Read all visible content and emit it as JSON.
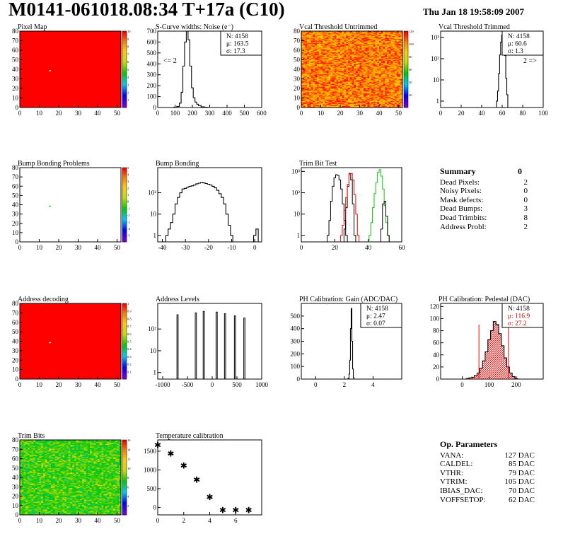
{
  "header": {
    "title": "M0141-061018.08:34 T+17a (C10)",
    "date": "Thu Jan 18 19:58:09 2007"
  },
  "colors": {
    "red": "#ff0000",
    "green": "#00cc00",
    "black": "#000000",
    "pedestal_stats": "#cc0000"
  },
  "summary": {
    "title": "Summary",
    "total": "0",
    "rows": [
      {
        "label": "Dead Pixels:",
        "value": "2"
      },
      {
        "label": "Noisy Pixels:",
        "value": "0"
      },
      {
        "label": "Mask defects:",
        "value": "0"
      },
      {
        "label": "Dead Bumps:",
        "value": "3"
      },
      {
        "label": "Dead Trimbits:",
        "value": "8"
      },
      {
        "label": "Address Probl:",
        "value": "2"
      }
    ]
  },
  "op_params": {
    "title": "Op. Parameters",
    "rows": [
      {
        "label": "VANA:",
        "value": "127 DAC"
      },
      {
        "label": "CALDEL:",
        "value": "85 DAC"
      },
      {
        "label": "VTHR:",
        "value": "79 DAC"
      },
      {
        "label": "VTRIM:",
        "value": "105 DAC"
      },
      {
        "label": "IBIAS_DAC:",
        "value": "70 DAC"
      },
      {
        "label": "VOFFSETOP:",
        "value": "62 DAC"
      }
    ]
  },
  "chart_data": [
    {
      "id": "pixel_map",
      "type": "heatmap",
      "title": "Pixel Map",
      "xlim": [
        0,
        52
      ],
      "ylim": [
        0,
        80
      ],
      "xticks": [
        0,
        10,
        20,
        30,
        40,
        50
      ],
      "yticks": [
        0,
        10,
        20,
        30,
        40,
        50,
        60,
        70,
        80
      ],
      "fill": "uniform",
      "level": 10,
      "zlim": [
        0,
        10
      ],
      "colorbar_ticks": [
        "1",
        "2",
        "3",
        "4",
        "5",
        "6",
        "7",
        "8",
        "9",
        "10"
      ],
      "defects": [
        {
          "x": 15,
          "y": 38
        }
      ]
    },
    {
      "id": "scurve",
      "type": "histogram",
      "title": "S-Curve widths: Noise (e⁻)",
      "xlim": [
        0,
        600
      ],
      "ylim": [
        0,
        700
      ],
      "xticks": [
        0,
        100,
        200,
        300,
        400,
        500,
        600
      ],
      "yticks": [
        0,
        100,
        200,
        300,
        400,
        500,
        600,
        700
      ],
      "stats": [
        "N: 4158",
        "μ: 163.5",
        "σ: 17.3"
      ],
      "annotation": "<= 2",
      "x": [
        80,
        100,
        120,
        130,
        140,
        150,
        160,
        170,
        180,
        190,
        200,
        210,
        220,
        230,
        240,
        260,
        280,
        300
      ],
      "values": [
        0,
        2,
        10,
        40,
        140,
        380,
        600,
        700,
        620,
        380,
        180,
        90,
        50,
        30,
        18,
        6,
        2,
        0
      ]
    },
    {
      "id": "vcal_untrimmed",
      "type": "heatmap",
      "title": "Vcal Threshold Untrimmed",
      "xlim": [
        0,
        52
      ],
      "ylim": [
        0,
        80
      ],
      "xticks": [
        0,
        10,
        20,
        30,
        40,
        50
      ],
      "yticks": [
        0,
        10,
        20,
        30,
        40,
        50,
        60,
        70,
        80
      ],
      "fill": "noise-orange",
      "zlim": [
        0,
        120
      ],
      "colorbar_ticks": [
        "20",
        "40",
        "60",
        "80",
        "100",
        "120"
      ]
    },
    {
      "id": "vcal_trimmed",
      "type": "histogram",
      "title": "Vcal Threshold Trimmed",
      "xlim": [
        0,
        100
      ],
      "ylim": [
        0.5,
        2000
      ],
      "log": true,
      "xticks": [
        0,
        20,
        40,
        60,
        80,
        100
      ],
      "yticks_log": [
        "1",
        "10",
        "10²",
        "10³"
      ],
      "stats": [
        "N: 4158",
        "μ: 60.6",
        "σ: 1.3"
      ],
      "annotation": "2 =>",
      "x": [
        55,
        56,
        57,
        58,
        59,
        60,
        61,
        62,
        63,
        64,
        65,
        66
      ],
      "values": [
        1,
        3,
        20,
        150,
        600,
        1300,
        1400,
        700,
        140,
        12,
        2,
        0
      ]
    },
    {
      "id": "bump_problems",
      "type": "heatmap",
      "title": "Bump Bonding Problems",
      "xlim": [
        0,
        52
      ],
      "ylim": [
        0,
        80
      ],
      "xticks": [
        0,
        10,
        20,
        30,
        40,
        50
      ],
      "yticks": [
        0,
        10,
        20,
        30,
        40,
        50,
        60,
        70,
        80
      ],
      "fill": "empty",
      "zlim": [
        -5,
        5
      ],
      "colorbar_ticks": [
        "-5",
        "-4",
        "-3",
        "-2",
        "-1",
        "0",
        "1",
        "2",
        "3",
        "4",
        "5"
      ],
      "defects": [
        {
          "x": 15,
          "y": 38
        }
      ]
    },
    {
      "id": "bump_bonding",
      "type": "histogram",
      "title": "Bump Bonding",
      "xlim": [
        -42,
        3
      ],
      "ylim": [
        0.5,
        1500
      ],
      "log": true,
      "xticks": [
        -40,
        -30,
        -20,
        -10,
        0
      ],
      "yticks_log": [
        "1",
        "10",
        "10²"
      ],
      "x": [
        -38,
        -37,
        -36,
        -35,
        -34,
        -33,
        -32,
        -31,
        -30,
        -29,
        -28,
        -27,
        -26,
        -25,
        -24,
        -23,
        -22,
        -21,
        -20,
        -19,
        -18,
        -17,
        -16,
        -15,
        -14,
        -13,
        -12,
        -11,
        -10,
        -9,
        -8,
        -7,
        -6,
        -5,
        -4,
        -3,
        -2,
        -1,
        0,
        1
      ],
      "values": [
        1,
        2,
        4,
        10,
        30,
        60,
        100,
        150,
        160,
        180,
        200,
        210,
        230,
        260,
        280,
        300,
        290,
        270,
        250,
        230,
        200,
        170,
        130,
        90,
        60,
        30,
        10,
        3,
        1,
        0,
        0,
        0,
        0,
        0,
        0,
        0,
        0,
        0,
        1,
        2
      ]
    },
    {
      "id": "trim_bit",
      "type": "histogram",
      "title": "Trim Bit Test",
      "xlim": [
        0,
        60
      ],
      "ylim": [
        0.5,
        1500
      ],
      "log": true,
      "xticks": [
        0,
        20,
        40,
        60
      ],
      "yticks_log": [
        "1",
        "10",
        "10²",
        "10³"
      ],
      "series": [
        {
          "color": "#000000",
          "x": [
            16,
            17,
            18,
            19,
            20,
            21,
            22,
            23,
            24,
            25,
            26,
            27
          ],
          "values": [
            1,
            5,
            40,
            200,
            500,
            700,
            650,
            400,
            150,
            30,
            5,
            1
          ]
        },
        {
          "color": "#000000",
          "x": [
            26,
            27,
            28,
            29,
            30,
            31,
            32
          ],
          "values": [
            2,
            20,
            200,
            800,
            400,
            30,
            1
          ]
        },
        {
          "color": "#ff0000",
          "x": [
            24,
            25,
            26,
            27,
            28,
            29,
            30,
            31,
            32,
            33,
            34
          ],
          "values": [
            1,
            3,
            15,
            60,
            250,
            700,
            800,
            400,
            80,
            10,
            1
          ]
        },
        {
          "color": "#00cc00",
          "x": [
            41,
            42,
            43,
            44,
            45,
            46,
            47,
            48,
            49,
            50,
            51,
            52
          ],
          "values": [
            1,
            4,
            20,
            90,
            300,
            900,
            1200,
            600,
            150,
            25,
            4,
            1
          ]
        },
        {
          "color": "#000000",
          "x": [
            48,
            49,
            50,
            51,
            52
          ],
          "values": [
            2,
            30,
            40,
            8,
            1
          ]
        }
      ]
    },
    {
      "id": "address_decoding",
      "type": "heatmap",
      "title": "Address decoding",
      "xlim": [
        0,
        52
      ],
      "ylim": [
        0,
        80
      ],
      "xticks": [
        0,
        10,
        20,
        30,
        40,
        50
      ],
      "yticks": [
        0,
        10,
        20,
        30,
        40,
        50,
        60,
        70,
        80
      ],
      "fill": "uniform",
      "level": 1,
      "zlim": [
        0,
        1
      ],
      "colorbar_ticks": [
        "0.1",
        "0.2",
        "0.3",
        "0.4",
        "0.5",
        "0.6",
        "0.7",
        "0.8",
        "0.9",
        "1"
      ],
      "defects": [
        {
          "x": 15,
          "y": 38
        }
      ]
    },
    {
      "id": "address_levels",
      "type": "histogram",
      "title": "Address Levels",
      "xlim": [
        -1100,
        1000
      ],
      "ylim": [
        0.5,
        1500
      ],
      "log": true,
      "xticks": [
        -1000,
        -500,
        0,
        500,
        1000
      ],
      "yticks_log": [
        "1",
        "10",
        "10²"
      ],
      "peaks": [
        {
          "x": -700,
          "height": 450
        },
        {
          "x": -330,
          "height": 550
        },
        {
          "x": -170,
          "height": 650
        },
        {
          "x": 90,
          "height": 600
        },
        {
          "x": 260,
          "height": 500
        },
        {
          "x": 460,
          "height": 400
        },
        {
          "x": 650,
          "height": 320
        }
      ]
    },
    {
      "id": "ph_gain",
      "type": "histogram",
      "title": "PH Calibration: Gain (ADC/DAC)",
      "xlim": [
        -1,
        6
      ],
      "ylim": [
        0,
        600
      ],
      "xticks": [
        0,
        2,
        4
      ],
      "yticks": [
        0,
        100,
        200,
        300,
        400,
        500
      ],
      "stats": [
        "N: 4158",
        "μ: 2.47",
        "σ: 0.07"
      ],
      "x": [
        2.2,
        2.3,
        2.35,
        2.4,
        2.45,
        2.5,
        2.55,
        2.6,
        2.65,
        2.7
      ],
      "values": [
        0,
        5,
        40,
        150,
        400,
        560,
        300,
        80,
        10,
        0
      ]
    },
    {
      "id": "ph_pedestal",
      "type": "histogram",
      "title": "PH Calibration: Pedestal (DAC)",
      "xlim": [
        -80,
        300
      ],
      "ylim": [
        0,
        125
      ],
      "xticks": [
        0,
        100,
        200
      ],
      "yticks": [
        0,
        20,
        40,
        60,
        80,
        100,
        120
      ],
      "stats": [
        "N: 4158",
        "μ: 116.9",
        "σ: 27.2"
      ],
      "fit_range": [
        62,
        171
      ],
      "x": [
        20,
        30,
        40,
        50,
        60,
        70,
        80,
        90,
        100,
        110,
        120,
        130,
        140,
        150,
        160,
        170,
        180,
        190,
        200
      ],
      "values": [
        1,
        2,
        3,
        6,
        10,
        18,
        30,
        45,
        65,
        80,
        95,
        90,
        75,
        55,
        35,
        20,
        10,
        4,
        1
      ]
    },
    {
      "id": "trim_bits",
      "type": "heatmap",
      "title": "Trim Bits",
      "xlim": [
        0,
        52
      ],
      "ylim": [
        0,
        80
      ],
      "xticks": [
        0,
        10,
        20,
        30,
        40,
        50
      ],
      "yticks": [
        0,
        10,
        20,
        30,
        40,
        50,
        60,
        70,
        80
      ],
      "fill": "noise-green",
      "zlim": [
        0,
        16
      ],
      "colorbar_ticks": [
        "2",
        "4",
        "6",
        "8",
        "10",
        "12",
        "14",
        "16"
      ]
    },
    {
      "id": "temp_cal",
      "type": "scatter",
      "title": "Temperature calibration",
      "xlim": [
        0,
        8
      ],
      "ylim": [
        -200,
        1800
      ],
      "xticks": [
        0,
        2,
        4,
        6
      ],
      "yticks": [
        0,
        500,
        1000,
        1500
      ],
      "x": [
        0,
        1,
        2,
        3,
        4,
        5,
        6,
        7
      ],
      "values": [
        1680,
        1450,
        1130,
        750,
        290,
        -60,
        -60,
        -60
      ]
    }
  ]
}
